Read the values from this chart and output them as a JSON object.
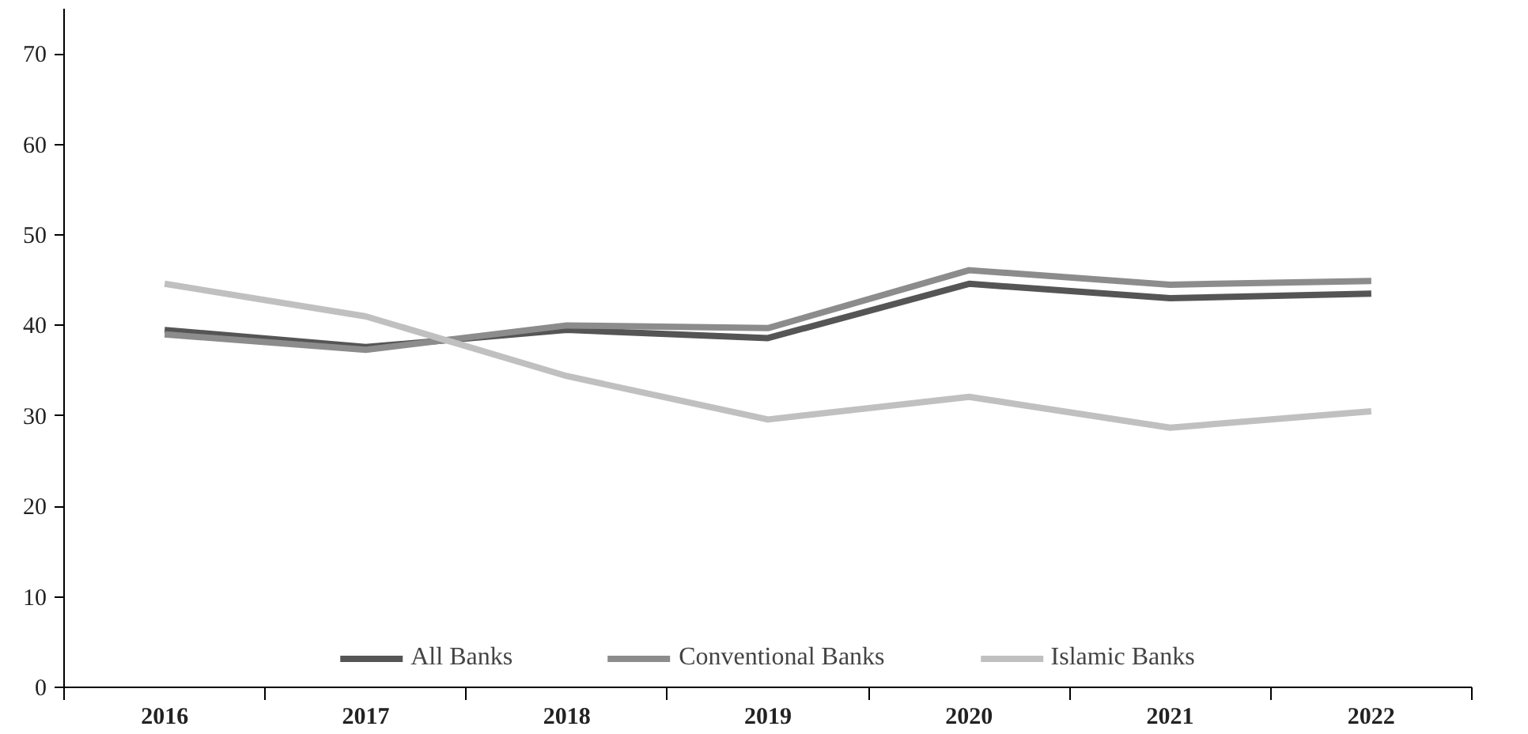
{
  "chart_data": {
    "type": "line",
    "categories": [
      "2016",
      "2017",
      "2018",
      "2019",
      "2020",
      "2021",
      "2022"
    ],
    "series": [
      {
        "name": "All Banks",
        "color": "#555555",
        "values": [
          39.5,
          37.6,
          39.5,
          38.6,
          44.6,
          43.0,
          43.5
        ]
      },
      {
        "name": "Conventional Banks",
        "color": "#8c8c8c",
        "values": [
          39.0,
          37.3,
          40.0,
          39.7,
          46.1,
          44.5,
          44.9
        ]
      },
      {
        "name": "Islamic Banks",
        "color": "#c0c0c0",
        "values": [
          44.6,
          41.0,
          34.4,
          29.6,
          32.1,
          28.7,
          30.5
        ]
      }
    ],
    "ylim": [
      0,
      75
    ],
    "yticks": [
      0,
      10,
      20,
      30,
      40,
      50,
      60,
      70
    ],
    "grid": false,
    "legend": "bottom",
    "marker": "none",
    "line_style": "solid"
  }
}
